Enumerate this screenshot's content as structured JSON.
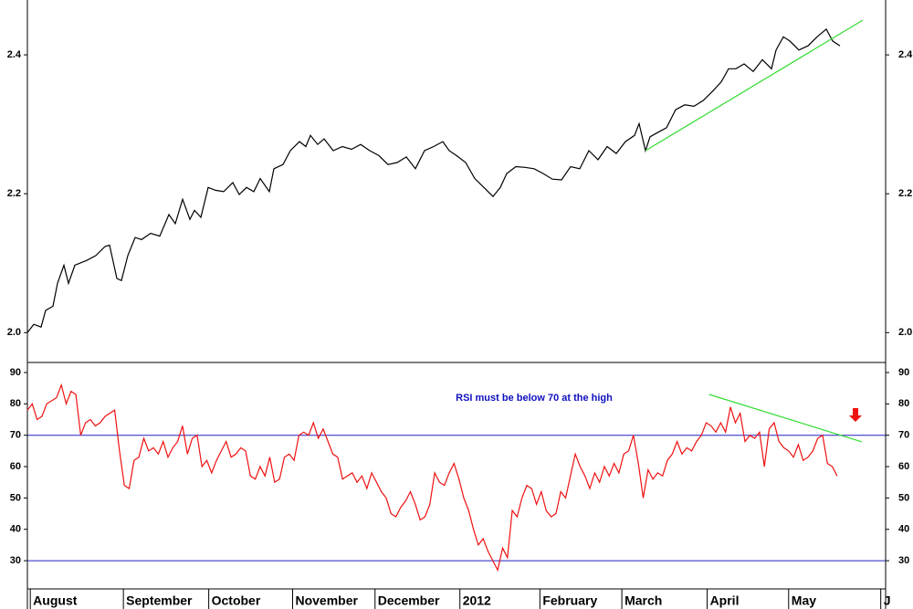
{
  "chart_data": [
    {
      "type": "line",
      "xlim": [
        0,
        188
      ],
      "ylim": [
        1.957,
        2.479
      ],
      "yticks": [
        {
          "value": 2.0,
          "label": "2.0"
        },
        2.2,
        2.4
      ],
      "series": [
        {
          "color": "#000000",
          "x": [
            0,
            1.4,
            3,
            4,
            5.6,
            6.6,
            8,
            9,
            10.4,
            13,
            15,
            17,
            18,
            19.6,
            20.6,
            22,
            23.6,
            25,
            27,
            29,
            31,
            32.4,
            34,
            35.6,
            36.6,
            38,
            39.6,
            41.2,
            43,
            45,
            46.4,
            48,
            49.6,
            51,
            53,
            54,
            56,
            57.6,
            59.6,
            61,
            62,
            63.6,
            65,
            67,
            69,
            71,
            73,
            75,
            77,
            79,
            81,
            83,
            85,
            87,
            89,
            91,
            92.4,
            94,
            96,
            98,
            100,
            102,
            103.6,
            105,
            107,
            109,
            111,
            113,
            115,
            117,
            119,
            121,
            123,
            125,
            127,
            129,
            131,
            133,
            134,
            135.4,
            136.4,
            138,
            140,
            142,
            144,
            146,
            148,
            150,
            152,
            153.6,
            155.2,
            157,
            159,
            161,
            163,
            164,
            165.6,
            167,
            169,
            171,
            173,
            175,
            176.4,
            178
          ],
          "values": [
            2.0,
            2.012,
            2.008,
            2.032,
            2.038,
            2.071,
            2.097,
            2.071,
            2.097,
            2.104,
            2.111,
            2.124,
            2.126,
            2.078,
            2.075,
            2.111,
            2.137,
            2.134,
            2.143,
            2.139,
            2.17,
            2.157,
            2.192,
            2.163,
            2.176,
            2.166,
            2.209,
            2.205,
            2.203,
            2.216,
            2.199,
            2.209,
            2.203,
            2.222,
            2.203,
            2.236,
            2.242,
            2.262,
            2.275,
            2.268,
            2.284,
            2.271,
            2.279,
            2.262,
            2.268,
            2.264,
            2.271,
            2.262,
            2.255,
            2.242,
            2.245,
            2.253,
            2.236,
            2.262,
            2.268,
            2.275,
            2.262,
            2.255,
            2.245,
            2.222,
            2.209,
            2.196,
            2.209,
            2.229,
            2.239,
            2.238,
            2.236,
            2.229,
            2.221,
            2.22,
            2.239,
            2.236,
            2.262,
            2.249,
            2.268,
            2.258,
            2.275,
            2.284,
            2.301,
            2.262,
            2.282,
            2.288,
            2.295,
            2.321,
            2.328,
            2.326,
            2.334,
            2.347,
            2.361,
            2.38,
            2.38,
            2.387,
            2.376,
            2.393,
            2.38,
            2.407,
            2.426,
            2.42,
            2.407,
            2.413,
            2.426,
            2.437,
            2.42,
            2.413
          ]
        },
        {
          "color": "#33dd33",
          "x": [
            135.4,
            183
          ],
          "values": [
            2.262,
            2.45
          ]
        }
      ]
    },
    {
      "type": "line",
      "xlim": [
        0,
        177
      ],
      "xticks": [
        {
          "value": 0.6,
          "label": "August"
        },
        {
          "value": 19.8,
          "label": "September"
        },
        {
          "value": 37.4,
          "label": "October"
        },
        {
          "value": 54.7,
          "label": "November"
        },
        {
          "value": 71.7,
          "label": "December"
        },
        {
          "value": 89.2,
          "label": "2012"
        },
        {
          "value": 105.7,
          "label": "February"
        },
        {
          "value": 122.6,
          "label": "March"
        },
        {
          "value": 140.2,
          "label": "April"
        },
        {
          "value": 157,
          "label": "May"
        },
        {
          "value": 176,
          "label": "J"
        }
      ],
      "ylim": [
        21,
        93.2
      ],
      "yticks": [
        30,
        40,
        50,
        60,
        70,
        80,
        90
      ],
      "reference_lines": [
        70,
        30
      ],
      "reference_color": "#2020c0",
      "annotations": [
        "RSI must be below 70 at the high"
      ],
      "series": [
        {
          "color": "#ee1111",
          "values": [
            78,
            80,
            75,
            76,
            80,
            81,
            82,
            86,
            80,
            84,
            83,
            70,
            74,
            75,
            73,
            74,
            76,
            77,
            78,
            65,
            54,
            53,
            62,
            63,
            69,
            65,
            66,
            64,
            68,
            63,
            66,
            68,
            73,
            64,
            69,
            70,
            60,
            62,
            58,
            62,
            65,
            68,
            63,
            64,
            66,
            65,
            57,
            56,
            60,
            57,
            63,
            55,
            56,
            63,
            64,
            62,
            70,
            71,
            70,
            74,
            69,
            72,
            68,
            64,
            63,
            56,
            57,
            58,
            55,
            57,
            53,
            58,
            55,
            52,
            50,
            45,
            44,
            47,
            49,
            52,
            48,
            43,
            44,
            48,
            58,
            55,
            54,
            58,
            61,
            56,
            50,
            46,
            40,
            35,
            37,
            33,
            30,
            27,
            34,
            31,
            46,
            44,
            50,
            54,
            53,
            48,
            52,
            46,
            44,
            45,
            52,
            50,
            57,
            64,
            60,
            57,
            53,
            58,
            55,
            60,
            57,
            61,
            58,
            64,
            65,
            70,
            61,
            50,
            59,
            56,
            58,
            57,
            62,
            64,
            68,
            64,
            66,
            65,
            68,
            70,
            74,
            73,
            71,
            74,
            71,
            79,
            74,
            77,
            68,
            70,
            69,
            71,
            60,
            72,
            74,
            68,
            66,
            65,
            63,
            67,
            62,
            63,
            65,
            69,
            70,
            61,
            60,
            57
          ]
        },
        {
          "color": "#33dd33",
          "x": [
            140.6,
            172.1
          ],
          "values": [
            83.0,
            67.9
          ]
        }
      ]
    }
  ]
}
